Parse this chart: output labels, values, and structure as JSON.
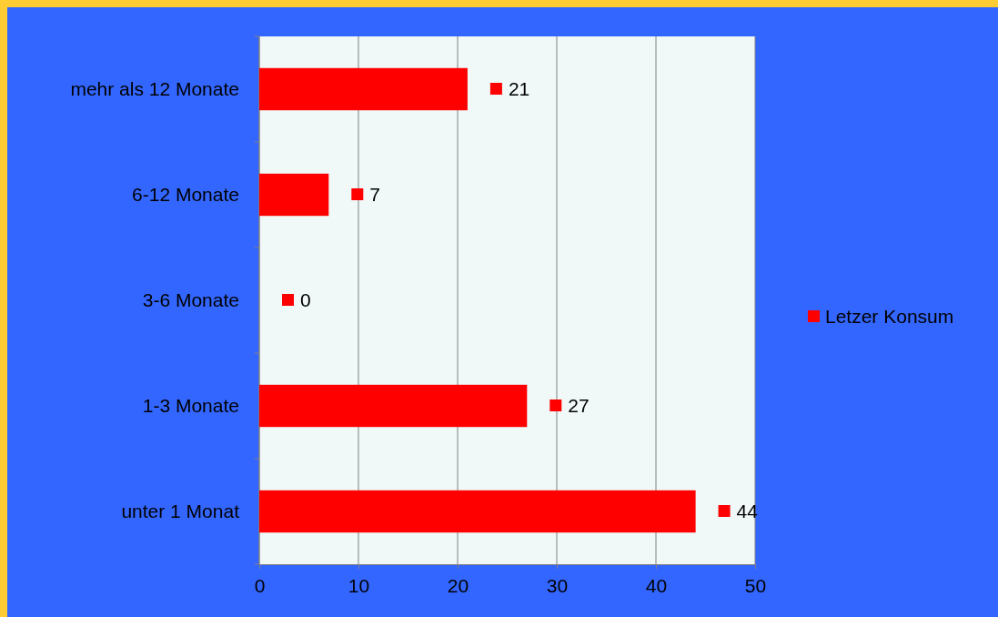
{
  "chart_data": {
    "type": "bar",
    "orientation": "horizontal",
    "categories": [
      "mehr als 12 Monate",
      "6-12 Monate",
      "3-6 Monate",
      "1-3 Monate",
      "unter 1 Monat"
    ],
    "series": [
      {
        "name": "Letzer Konsum",
        "color": "#ff0000",
        "values": [
          21,
          7,
          0,
          27,
          44
        ]
      }
    ],
    "xlim": [
      0,
      50
    ],
    "xticks": [
      0,
      10,
      20,
      30,
      40,
      50
    ],
    "grid": "x",
    "legend": "right",
    "data_labels": true
  }
}
